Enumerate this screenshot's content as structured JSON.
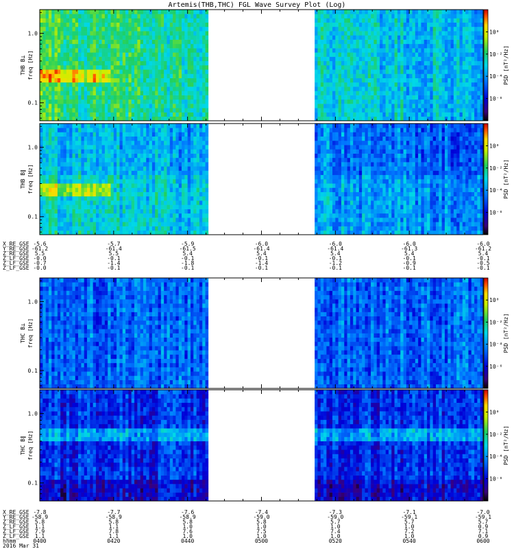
{
  "chart_data": {
    "type": "heatmap",
    "title": "Artemis(THB,THC) FGL Wave Survey Plot (Log)",
    "y_scale": "log",
    "y_tick_labels": [
      "1.0",
      "0.1"
    ],
    "y_ticks": [
      1.0,
      0.1
    ],
    "y_range": [
      0.055,
      2.2
    ],
    "x_range_minutes": [
      0,
      120
    ],
    "data_gap_minutes": [
      46,
      74
    ],
    "colorbar": {
      "label": "PSD [nT²/Hz]",
      "scale": "log",
      "range": [
        1e-08,
        100.0
      ],
      "tick_labels": [
        "10⁰",
        "10⁻²",
        "10⁻⁴",
        "10⁻⁶"
      ],
      "tick_values": [
        1.0,
        0.01,
        0.0001,
        1e-06
      ]
    },
    "panels": [
      {
        "probe": "THB",
        "ylabel_top": "THB B⊥",
        "ylabel_bottom": "freq [Hz]",
        "intensity": "high",
        "base_log_psd": -3.2
      },
      {
        "probe": "THB",
        "ylabel_top": "THB B∥",
        "ylabel_bottom": "freq [Hz]",
        "intensity": "high",
        "base_log_psd": -4.0
      },
      {
        "probe": "THC",
        "ylabel_top": "THC B⊥",
        "ylabel_bottom": "freq [Hz]",
        "intensity": "medium",
        "base_log_psd": -4.6
      },
      {
        "probe": "THC",
        "ylabel_top": "THC B∥",
        "ylabel_bottom": "freq [Hz]",
        "intensity": "low",
        "base_log_psd": -5.4
      }
    ],
    "tick_tables": [
      {
        "rows": [
          {
            "label": "X_RE_GSE",
            "values": [
              "-5.6",
              "-5.7",
              "-5.9",
              "-6.0",
              "-6.0",
              "-6.0",
              "-6.0"
            ]
          },
          {
            "label": "Y_RE_GSE",
            "values": [
              "-61.2",
              "-61.4",
              "-61.5",
              "-61.4",
              "-61.4",
              "-61.3",
              "-61.2"
            ]
          },
          {
            "label": "Z_RE_GSE",
            "values": [
              "5.5",
              "5.5",
              "5.4",
              "5.4",
              "5.4",
              "5.4",
              "5.4"
            ]
          },
          {
            "label": "Z_LF_GSE",
            "values": [
              "-0.0",
              "-0.1",
              "-0.1",
              "-0.1",
              "-0.1",
              "-0.1",
              "-0.1"
            ]
          },
          {
            "label": "Z_LF_GSE",
            "values": [
              "-0.7",
              "-1.4",
              "-1.8",
              "-1.4",
              "-1.2",
              "-0.9",
              "-0.5"
            ]
          },
          {
            "label": "Z_LF_GSE",
            "values": [
              "-0.0",
              "-0.1",
              "-0.1",
              "-0.1",
              "-0.1",
              "-0.1",
              "-0.1"
            ]
          }
        ]
      },
      {
        "rows": [
          {
            "label": "X_RE_GSE",
            "values": [
              "-7.8",
              "-7.7",
              "-7.6",
              "-7.4",
              "-7.3",
              "-7.1",
              "-7.0"
            ]
          },
          {
            "label": "Y_RE_GSE",
            "values": [
              "-58.9",
              "-58.9",
              "-58.9",
              "-59.0",
              "-59.0",
              "-59.1",
              "-59.1"
            ]
          },
          {
            "label": "Z_RE_GSE",
            "values": [
              "5.8",
              "5.8",
              "5.8",
              "5.8",
              "5.7",
              "5.7",
              "5.7"
            ]
          },
          {
            "label": "Z_LF_GSE",
            "values": [
              "1.1",
              "1.1",
              "1.0",
              "1.0",
              "1.0",
              "1.0",
              "0.9"
            ]
          },
          {
            "label": "Z_LF_GSE",
            "values": [
              "7.9",
              "7.8",
              "7.6",
              "7.5",
              "7.4",
              "7.2",
              "7.1"
            ]
          },
          {
            "label": "Z_LF_GSE",
            "values": [
              "1.1",
              "1.1",
              "1.0",
              "1.0",
              "1.0",
              "1.0",
              "0.9"
            ]
          },
          {
            "label": "hhmm",
            "values": [
              "0400",
              "0420",
              "0440",
              "0500",
              "0520",
              "0540",
              "0600"
            ]
          },
          {
            "label": "2016 Mar 31",
            "values": []
          }
        ]
      }
    ]
  }
}
